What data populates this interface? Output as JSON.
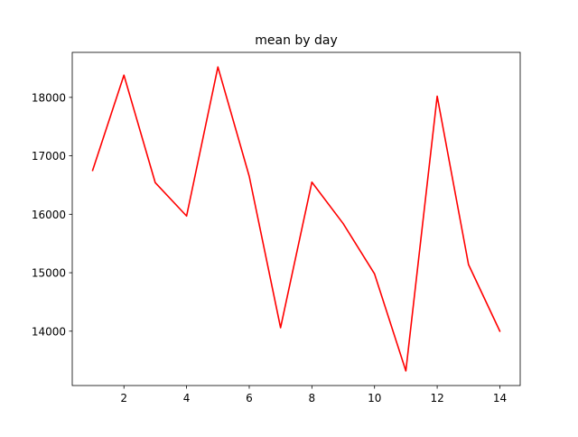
{
  "chart_data": {
    "type": "line",
    "title": "mean by day",
    "xlabel": "",
    "ylabel": "",
    "x": [
      1,
      2,
      3,
      4,
      5,
      6,
      7,
      8,
      9,
      10,
      11,
      12,
      13,
      14
    ],
    "series": [
      {
        "values": [
          16750,
          18380,
          16540,
          15970,
          18520,
          16650,
          14060,
          16550,
          15840,
          14980,
          13320,
          18020,
          15140,
          14000
        ],
        "color": "#ff0000"
      }
    ],
    "xlim": [
      0.35,
      14.65
    ],
    "ylim": [
      13070,
      18770
    ],
    "xticks": [
      2,
      4,
      6,
      8,
      10,
      12,
      14
    ],
    "yticks": [
      14000,
      15000,
      16000,
      17000,
      18000
    ],
    "xtick_labels": [
      "2",
      "4",
      "6",
      "8",
      "10",
      "12",
      "14"
    ],
    "ytick_labels": [
      "14000",
      "15000",
      "16000",
      "17000",
      "18000"
    ],
    "grid": false,
    "legend": "none"
  }
}
